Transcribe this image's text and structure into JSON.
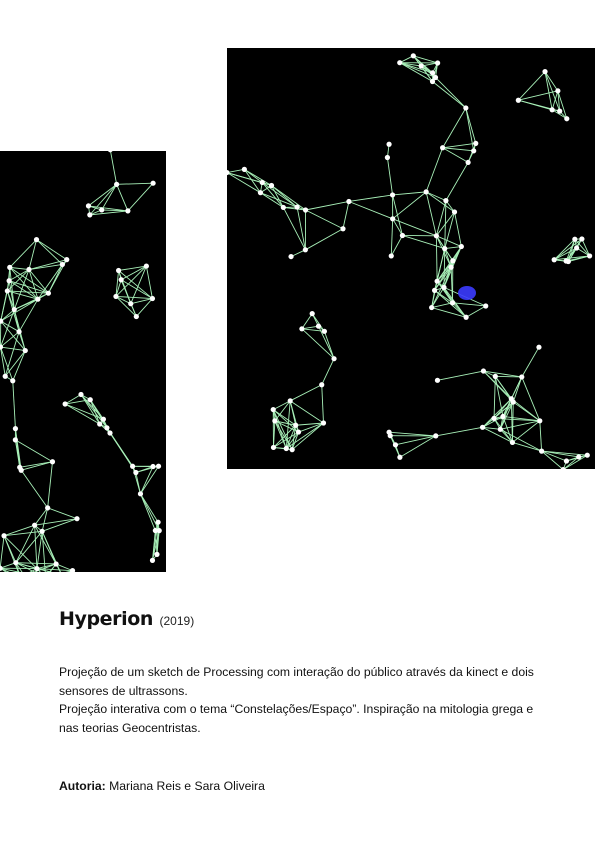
{
  "project": {
    "title": "Hyperion",
    "year": "(2019)",
    "description": [
      "Projeção de um sketch de Processing com interação do público através da kinect e dois sensores de ultrassons.",
      "Projeção interativa com o tema “Constelações/Espaço”. Inspiração na mitologia grega e nas teorias Geocentristas."
    ],
    "authors_label": "Autoria:",
    "authors": "Mariana Reis e Sara Oliveira"
  },
  "images": [
    {
      "name": "constellation-image-left",
      "background": "#000000",
      "node_color": "#ffffff",
      "line_color": "#a8f0b8"
    },
    {
      "name": "constellation-image-right",
      "background": "#000000",
      "node_color": "#ffffff",
      "line_color": "#a8f0b8",
      "highlight_color": "#3b3bff"
    }
  ]
}
